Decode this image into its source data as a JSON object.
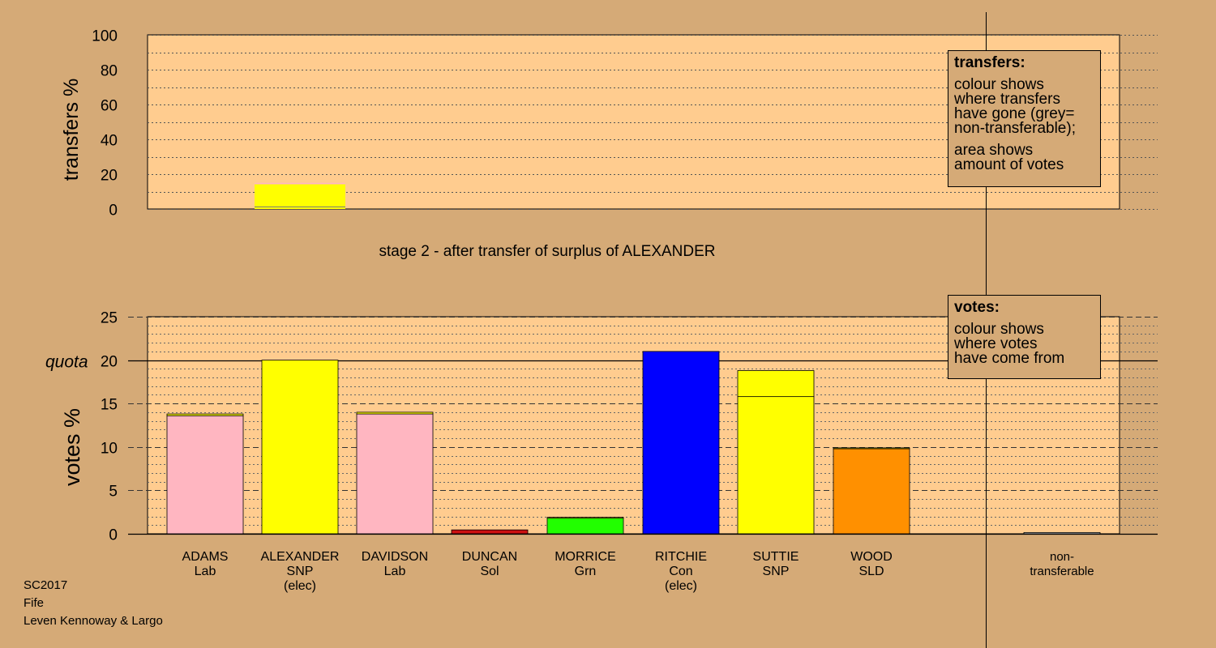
{
  "chart_data": [
    {
      "type": "bar",
      "ylabel": "transfers %",
      "ylim": [
        0,
        100
      ],
      "yticks": [
        0,
        20,
        40,
        60,
        80,
        100
      ],
      "bars": [
        {
          "candidate": "ALEXANDER",
          "total": 15.0,
          "segments": [
            {
              "value": 1.2,
              "color": "#ffff00"
            },
            {
              "value": 13.0,
              "color": "#ffff00"
            },
            {
              "value": 0.8,
              "color": "#ffb6c1"
            }
          ]
        }
      ],
      "caption": "stage 2 - after transfer of surplus of ALEXANDER"
    },
    {
      "type": "bar",
      "ylabel": "votes %",
      "ylim": [
        0,
        25
      ],
      "yticks": [
        0,
        5,
        10,
        15,
        20,
        25
      ],
      "quota": 20,
      "quota_label": "quota",
      "categories": [
        {
          "name": "ADAMS",
          "party": "Lab",
          "status": ""
        },
        {
          "name": "ALEXANDER",
          "party": "SNP",
          "status": "(elec)"
        },
        {
          "name": "DAVIDSON",
          "party": "Lab",
          "status": ""
        },
        {
          "name": "DUNCAN",
          "party": "Sol",
          "status": ""
        },
        {
          "name": "MORRICE",
          "party": "Grn",
          "status": ""
        },
        {
          "name": "RITCHIE",
          "party": "Con",
          "status": "(elec)"
        },
        {
          "name": "SUTTIE",
          "party": "SNP",
          "status": ""
        },
        {
          "name": "WOOD",
          "party": "SLD",
          "status": ""
        }
      ],
      "series": [
        {
          "values": [
            13.6,
            20.0,
            13.8,
            0.45,
            1.8,
            21.0,
            15.8,
            9.8
          ],
          "colors": [
            "#ffb6c1",
            "#ffff00",
            "#ffb6c1",
            "#cc1111",
            "#22ff00",
            "#0000ff",
            "#ffff00",
            "#ff9000"
          ]
        },
        {
          "values": [
            0.2,
            0.0,
            0.2,
            0.0,
            0.1,
            0.0,
            3.0,
            0.1
          ],
          "colors": [
            "#ffff00",
            "#ffff00",
            "#ffff00",
            "#ffff00",
            "#ffff00",
            "#ffff00",
            "#ffff00",
            "#ffff00"
          ]
        }
      ],
      "nontransferable": {
        "label": [
          "non-",
          "transferable"
        ],
        "value": 0.15
      }
    }
  ],
  "legends": {
    "transfers": {
      "title": "transfers:",
      "lines1": [
        "colour shows",
        "where transfers",
        "have gone (grey=",
        "non-transferable);"
      ],
      "lines2": [
        "area shows",
        "amount of votes"
      ]
    },
    "votes": {
      "title": "votes:",
      "lines": [
        "colour shows",
        "where votes",
        "have come from"
      ]
    }
  },
  "footer": {
    "line1": "SC2017",
    "line2": "Fife",
    "line3": "Leven Kennoway & Largo"
  }
}
